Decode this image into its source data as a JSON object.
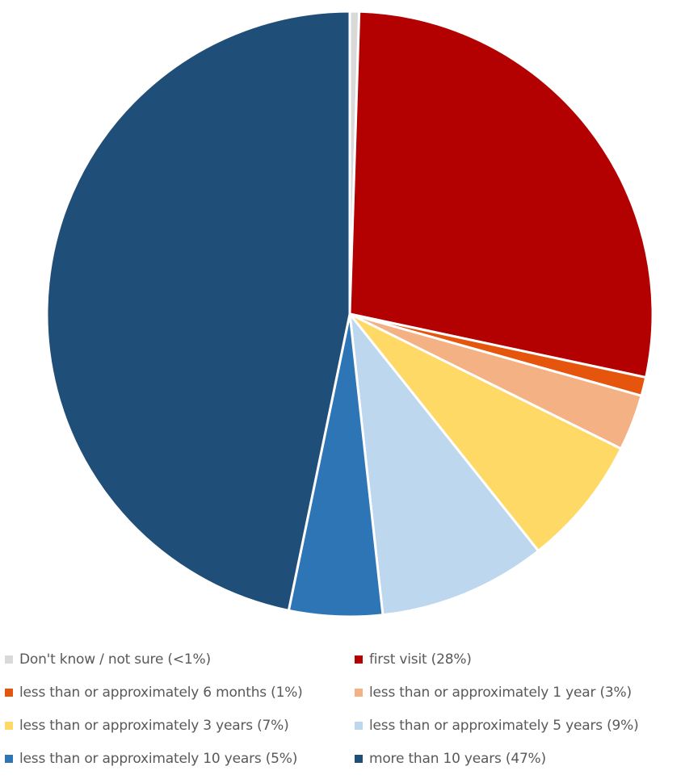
{
  "chart_data": {
    "type": "pie",
    "title": "",
    "slices": [
      {
        "label": "Don't know / not sure (<1%)",
        "value": 0.5,
        "color": "#d9d9d9"
      },
      {
        "label": "first visit (28%)",
        "value": 28,
        "color": "#b30000"
      },
      {
        "label": "less than or approximately 6 months (1%)",
        "value": 1,
        "color": "#e6550d"
      },
      {
        "label": "less than or approximately 1 year (3%)",
        "value": 3,
        "color": "#f4b183"
      },
      {
        "label": "less than or approximately 3 years (7%)",
        "value": 7,
        "color": "#ffd966"
      },
      {
        "label": "less than or approximately 5 years (9%)",
        "value": 9,
        "color": "#bdd7ee"
      },
      {
        "label": "less than or approximately 10 years (5%)",
        "value": 5,
        "color": "#2e75b6"
      },
      {
        "label": "more than 10 years (47%)",
        "value": 47,
        "color": "#1f4e79"
      }
    ],
    "legend_position": "bottom",
    "start_angle": "top",
    "direction": "clockwise"
  }
}
